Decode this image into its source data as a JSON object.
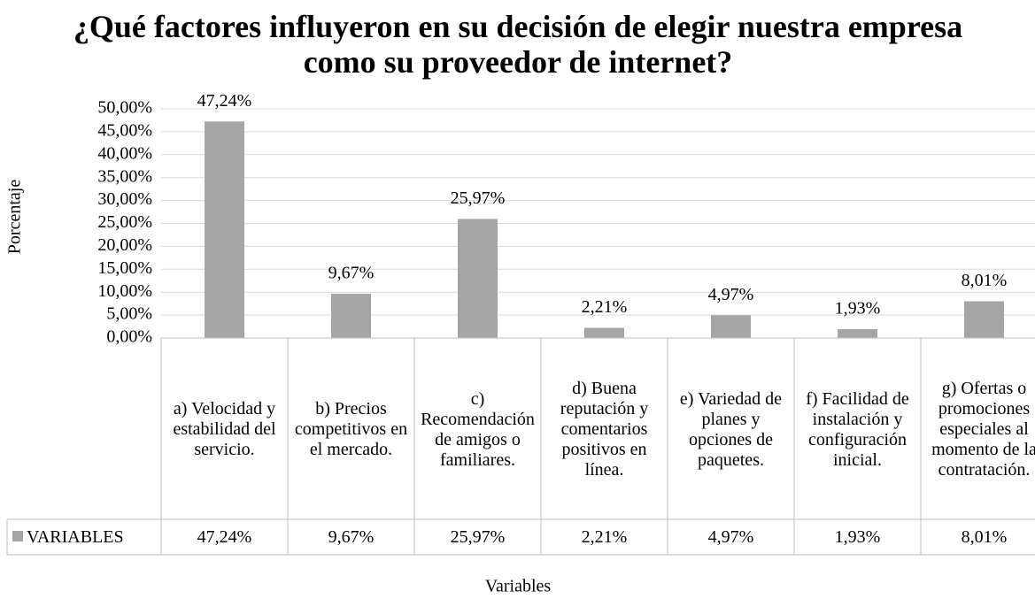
{
  "chart_data": {
    "type": "bar",
    "title": "¿Qué factores influyeron en su decisión de elegir nuestra empresa como su proveedor de internet?",
    "y_label": "Porcentaje",
    "x_label": "Variables",
    "categories": [
      "a) Velocidad y estabilidad del servicio.",
      "b) Precios competitivos en el mercado.",
      "c) Recomendación de amigos o familiares.",
      "d) Buena reputación y comentarios positivos en línea.",
      "e) Variedad de planes y opciones de paquetes.",
      "f) Facilidad de instalación y configuración inicial.",
      "g) Ofertas o promociones especiales al momento de la contratación."
    ],
    "series": [
      {
        "name": "VARIABLES",
        "color": "#a5a5a5",
        "values": [
          47.24,
          9.67,
          25.97,
          2.21,
          4.97,
          1.93,
          8.01
        ],
        "value_labels": [
          "47,24%",
          "9,67%",
          "25,97%",
          "2,21%",
          "4,97%",
          "1,93%",
          "8,01%"
        ]
      }
    ],
    "ylim": [
      0,
      50
    ],
    "yticks": [
      {
        "value": 0,
        "label": "0,00%"
      },
      {
        "value": 5,
        "label": "5,00%"
      },
      {
        "value": 10,
        "label": "10,00%"
      },
      {
        "value": 15,
        "label": "15,00%"
      },
      {
        "value": 20,
        "label": "20,00%"
      },
      {
        "value": 25,
        "label": "25,00%"
      },
      {
        "value": 30,
        "label": "30,00%"
      },
      {
        "value": 35,
        "label": "35,00%"
      },
      {
        "value": 40,
        "label": "40,00%"
      },
      {
        "value": 45,
        "label": "45,00%"
      },
      {
        "value": 50,
        "label": "50,00%"
      }
    ],
    "grid": true
  }
}
